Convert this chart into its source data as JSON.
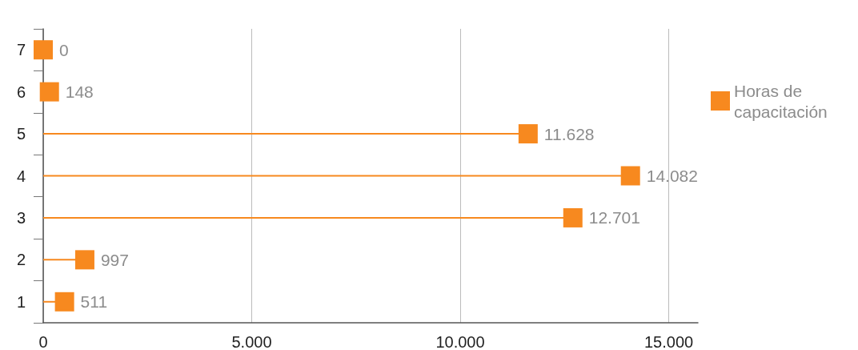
{
  "chart_data": {
    "type": "lollipop",
    "orientation": "horizontal",
    "categories": [
      "7",
      "6",
      "5",
      "4",
      "3",
      "2",
      "1"
    ],
    "series": [
      {
        "name": "Horas de capacitación",
        "color": "#f7891f",
        "values": [
          0,
          148,
          11628,
          14082,
          12701,
          997,
          511
        ],
        "value_labels": [
          "0",
          "148",
          "11.628",
          "14.082",
          "12.701",
          "997",
          "511"
        ]
      }
    ],
    "xlim": [
      0,
      15700
    ],
    "xticks": [
      0,
      {
        "value": 5000,
        "label": "5.000"
      },
      {
        "value": 10000,
        "label": "10.000"
      },
      {
        "value": 15000,
        "label": "15.000"
      }
    ],
    "grid": "x",
    "legend": "right",
    "marker": "square"
  }
}
